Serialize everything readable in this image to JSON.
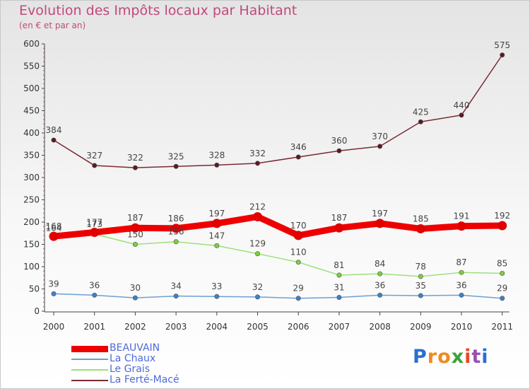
{
  "title": "Evolution des Impôts locaux par Habitant",
  "subtitle": "(en € et par an)",
  "logo": [
    "P",
    "r",
    "o",
    "x",
    "i",
    "t",
    "i"
  ],
  "logo_colors": [
    "#2a6fd0",
    "#f08a1c",
    "#f08a1c",
    "#3aa33a",
    "#e84a2a",
    "#9a4fb0",
    "#2a6fd0"
  ],
  "chart_data": {
    "type": "line",
    "x": [
      "2000",
      "2001",
      "2002",
      "2003",
      "2004",
      "2005",
      "2006",
      "2007",
      "2008",
      "2009",
      "2010",
      "2011"
    ],
    "ylim": [
      0,
      600
    ],
    "yticks": [
      0,
      50,
      100,
      150,
      200,
      250,
      300,
      350,
      400,
      450,
      500,
      550,
      600
    ],
    "grid": false,
    "legend_position": "bottom-left",
    "series": [
      {
        "name": "BEAUVAIN",
        "color": "#ee0000",
        "marker": "#e00000",
        "values": [
          168,
          177,
          187,
          186,
          197,
          212,
          170,
          187,
          197,
          185,
          191,
          192
        ]
      },
      {
        "name": "La Chaux",
        "color": "#6f9fd0",
        "marker": "#3b82c6",
        "values": [
          39,
          36,
          30,
          34,
          33,
          32,
          29,
          31,
          36,
          35,
          36,
          29
        ]
      },
      {
        "name": "Le Grais",
        "color": "#9ee07a",
        "marker": "#7ccf3c",
        "values": [
          164,
          173,
          150,
          156,
          147,
          129,
          110,
          81,
          84,
          78,
          87,
          85
        ]
      },
      {
        "name": "La Ferté-Macé",
        "color": "#7a2a34",
        "marker": "#5a1a22",
        "values": [
          384,
          327,
          322,
          325,
          328,
          332,
          346,
          360,
          370,
          425,
          440,
          575
        ]
      }
    ],
    "labels_shown": [
      [
        "168",
        "177",
        "187",
        "186",
        "197",
        "212",
        "170",
        "187",
        "197",
        "185",
        "191",
        "192"
      ],
      [
        "39",
        "36",
        "30",
        "34",
        "33",
        "32",
        "29",
        "31",
        "36",
        "35",
        "36",
        "29"
      ],
      [
        "164",
        "173",
        "150",
        "156",
        "147",
        "129",
        "110",
        "81",
        "84",
        "78",
        "87",
        "85"
      ],
      [
        "384",
        "327",
        "322",
        "325",
        "328",
        "332",
        "346",
        "360",
        "370",
        "425",
        "440",
        "575"
      ]
    ]
  }
}
